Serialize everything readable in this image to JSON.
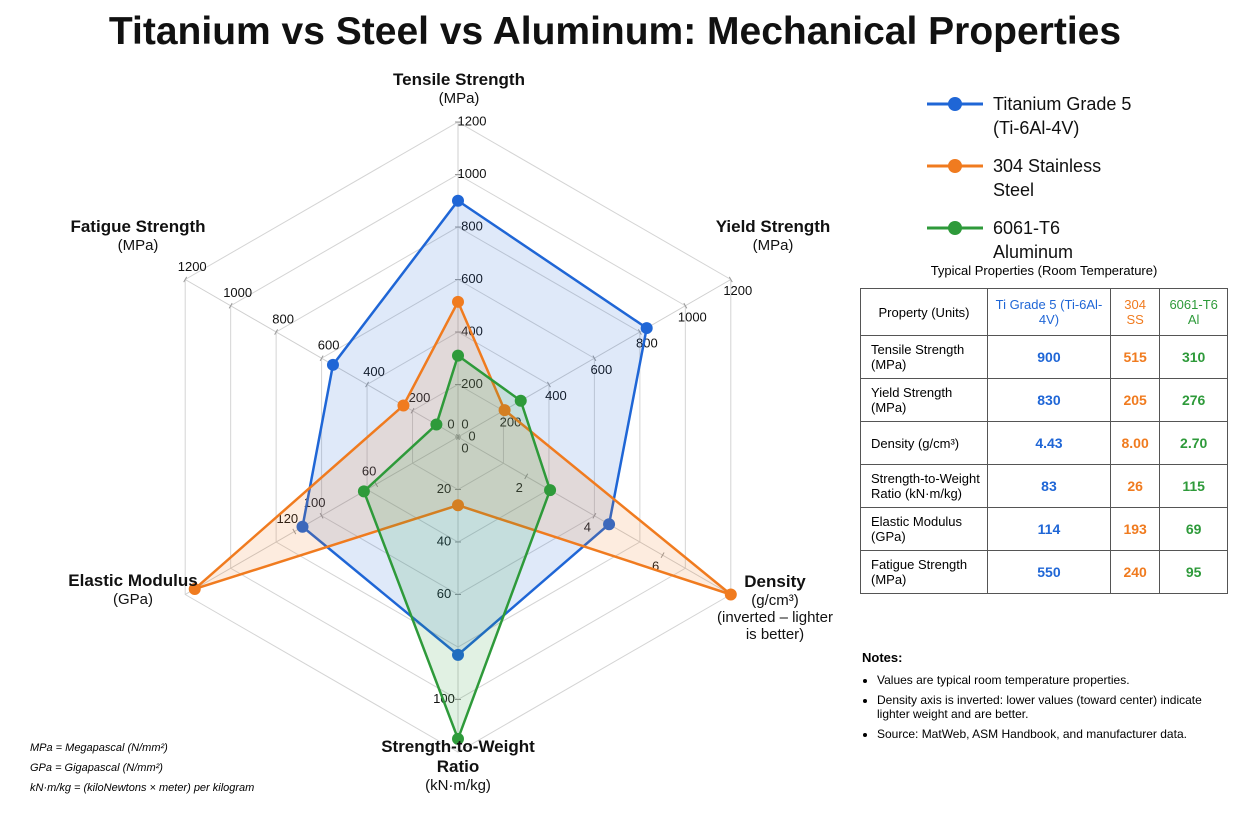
{
  "chart_data": {
    "type": "radar",
    "title": "Titanium vs Steel vs Aluminum: Mechanical Properties",
    "axes": [
      {
        "name": "Tensile Strength",
        "unit": "(MPa)",
        "lim": [
          0,
          1200
        ],
        "ticks": [
          0,
          200,
          400,
          600,
          800,
          1000,
          1200
        ]
      },
      {
        "name": "Yield Strength",
        "unit": "(MPa)",
        "lim": [
          0,
          1200
        ],
        "ticks": [
          0,
          200,
          400,
          600,
          800,
          1000,
          1200
        ]
      },
      {
        "name": "Density",
        "unit": "(g/cm³)",
        "note": "(inverted – lighter is better)",
        "lim": [
          0,
          8
        ],
        "ticks": [
          2,
          4,
          6
        ]
      },
      {
        "name": "Strength-to-Weight Ratio",
        "unit": "(kN·m/kg)",
        "lim": [
          0,
          120
        ],
        "ticks": [
          20,
          40,
          60,
          100
        ]
      },
      {
        "name": "Elastic Modulus",
        "unit": "(GPa)",
        "lim": [
          0,
          200
        ],
        "ticks": [
          0,
          60,
          100,
          120
        ]
      },
      {
        "name": "Fatigue Strength",
        "unit": "(MPa)",
        "lim": [
          0,
          1200
        ],
        "ticks": [
          0,
          200,
          400,
          600,
          800,
          1000,
          1200
        ]
      }
    ],
    "series": [
      {
        "name": "Titanium Grade 5 (Ti-6Al-4V)",
        "color": "#1f66d6",
        "values": [
          900,
          830,
          4.43,
          83,
          114,
          550
        ]
      },
      {
        "name": "304 Stainless Steel",
        "color": "#f07b1f",
        "values": [
          515,
          205,
          8.0,
          26,
          193,
          240
        ]
      },
      {
        "name": "6061-T6 Aluminum",
        "color": "#2e9a3a",
        "values": [
          310,
          276,
          2.7,
          115,
          69,
          95
        ]
      }
    ],
    "legend": "top-right"
  },
  "table": {
    "title": "Typical Properties (Room Temperature)",
    "header": [
      "Property (Units)",
      "Ti Grade 5 (Ti-6Al-4V)",
      "304 SS",
      "6061-T6 Al"
    ],
    "rows": [
      [
        "Tensile Strength (MPa)",
        "900",
        "515",
        "310"
      ],
      [
        "Yield Strength (MPa)",
        "830",
        "205",
        "276"
      ],
      [
        "Density (g/cm³)",
        "4.43",
        "8.00",
        "2.70"
      ],
      [
        "Strength-to-Weight Ratio (kN·m/kg)",
        "83",
        "26",
        "115"
      ],
      [
        "Elastic Modulus (GPa)",
        "114",
        "193",
        "69"
      ],
      [
        "Fatigue Strength (MPa)",
        "550",
        "240",
        "95"
      ]
    ]
  },
  "notes": {
    "title": "Notes:",
    "items": [
      "Values are typical room temperature properties.",
      "Density axis is inverted: lower values (toward center) indicate lighter weight and are better.",
      "Source: MatWeb, ASM Handbook, and manufacturer data."
    ]
  },
  "footnotes": [
    "MPa = Megapascal (N/mm²)",
    "GPa = Gigapascal (N/mm²)",
    "kN·m/kg = (kiloNewtons × meter) per kilogram"
  ]
}
